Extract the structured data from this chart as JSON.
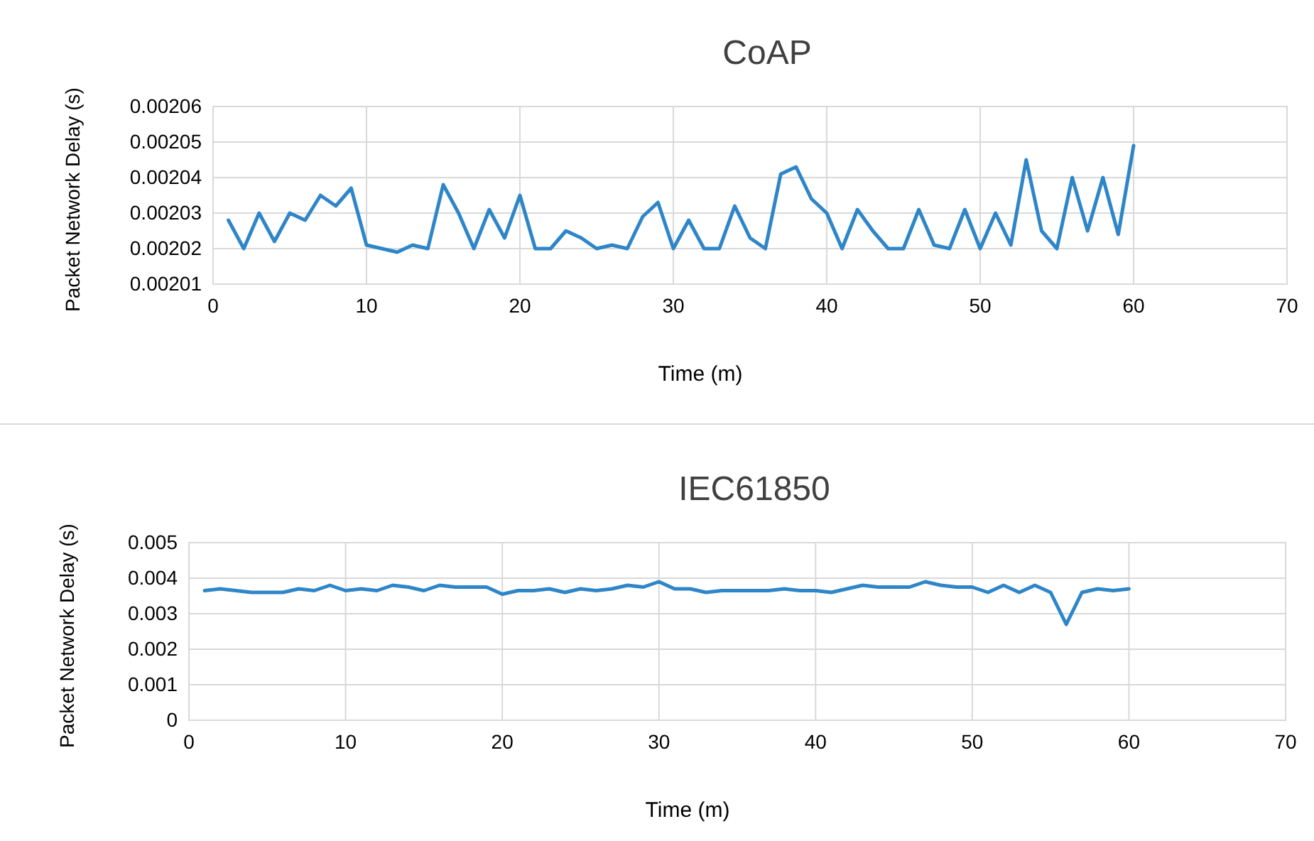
{
  "chart_data": [
    {
      "type": "line",
      "title": "CoAP",
      "xlabel": "Time (m)",
      "ylabel": "Packet Network Delay (s)",
      "xlim": [
        0,
        70
      ],
      "xticks": [
        0,
        10,
        20,
        30,
        40,
        50,
        60,
        70
      ],
      "ylim": [
        0.00201,
        0.00206
      ],
      "yticks": [
        0.00201,
        0.00202,
        0.00203,
        0.00204,
        0.00205,
        0.00206
      ],
      "grid": true,
      "x": [
        1,
        2,
        3,
        4,
        5,
        6,
        7,
        8,
        9,
        10,
        11,
        12,
        13,
        14,
        15,
        16,
        17,
        18,
        19,
        20,
        21,
        22,
        23,
        24,
        25,
        26,
        27,
        28,
        29,
        30,
        31,
        32,
        33,
        34,
        35,
        36,
        37,
        38,
        39,
        40,
        41,
        42,
        43,
        44,
        45,
        46,
        47,
        48,
        49,
        50,
        51,
        52,
        53,
        54,
        55,
        56,
        57,
        58,
        59,
        60
      ],
      "series": [
        {
          "color": "#2e86c8",
          "values": [
            0.002028,
            0.00202,
            0.00203,
            0.002022,
            0.00203,
            0.002028,
            0.002035,
            0.002032,
            0.002037,
            0.002021,
            0.00202,
            0.002019,
            0.002021,
            0.00202,
            0.002038,
            0.00203,
            0.00202,
            0.002031,
            0.002023,
            0.002035,
            0.00202,
            0.00202,
            0.002025,
            0.002023,
            0.00202,
            0.002021,
            0.00202,
            0.002029,
            0.002033,
            0.00202,
            0.002028,
            0.00202,
            0.00202,
            0.002032,
            0.002023,
            0.00202,
            0.002041,
            0.002043,
            0.002034,
            0.00203,
            0.00202,
            0.002031,
            0.002025,
            0.00202,
            0.00202,
            0.002031,
            0.002021,
            0.00202,
            0.002031,
            0.00202,
            0.00203,
            0.002021,
            0.002045,
            0.002025,
            0.00202,
            0.00204,
            0.002025,
            0.00204,
            0.002024,
            0.002049
          ]
        }
      ]
    },
    {
      "type": "line",
      "title": "IEC61850",
      "xlabel": "Time (m)",
      "ylabel": "Packet Network Delay (s)",
      "xlim": [
        0,
        70
      ],
      "xticks": [
        0,
        10,
        20,
        30,
        40,
        50,
        60,
        70
      ],
      "ylim": [
        0,
        0.005
      ],
      "yticks": [
        0,
        0.001,
        0.002,
        0.003,
        0.004,
        0.005
      ],
      "grid": true,
      "x": [
        1,
        2,
        3,
        4,
        5,
        6,
        7,
        8,
        9,
        10,
        11,
        12,
        13,
        14,
        15,
        16,
        17,
        18,
        19,
        20,
        21,
        22,
        23,
        24,
        25,
        26,
        27,
        28,
        29,
        30,
        31,
        32,
        33,
        34,
        35,
        36,
        37,
        38,
        39,
        40,
        41,
        42,
        43,
        44,
        45,
        46,
        47,
        48,
        49,
        50,
        51,
        52,
        53,
        54,
        55,
        56,
        57,
        58,
        59,
        60
      ],
      "series": [
        {
          "color": "#2e86c8",
          "values": [
            0.00365,
            0.0037,
            0.00365,
            0.0036,
            0.0036,
            0.0036,
            0.0037,
            0.00365,
            0.0038,
            0.00365,
            0.0037,
            0.00365,
            0.0038,
            0.00375,
            0.00365,
            0.0038,
            0.00375,
            0.00375,
            0.00375,
            0.00355,
            0.00365,
            0.00365,
            0.0037,
            0.0036,
            0.0037,
            0.00365,
            0.0037,
            0.0038,
            0.00375,
            0.0039,
            0.0037,
            0.0037,
            0.0036,
            0.00365,
            0.00365,
            0.00365,
            0.00365,
            0.0037,
            0.00365,
            0.00365,
            0.0036,
            0.0037,
            0.0038,
            0.00375,
            0.00375,
            0.00375,
            0.0039,
            0.0038,
            0.00375,
            0.00375,
            0.0036,
            0.0038,
            0.0036,
            0.0038,
            0.0036,
            0.0027,
            0.0036,
            0.0037,
            0.00365,
            0.0037
          ]
        }
      ]
    }
  ]
}
